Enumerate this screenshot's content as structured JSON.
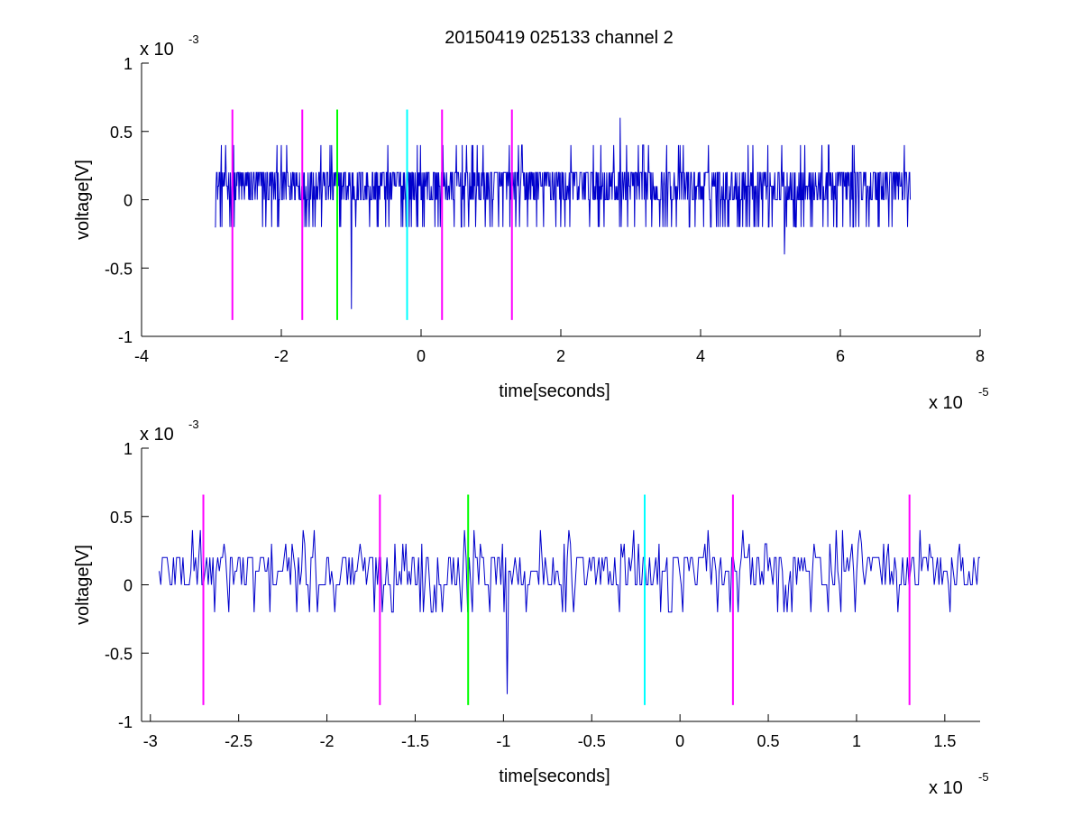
{
  "figure": {
    "title": "20150419 025133 channel 2",
    "background": "#ffffff"
  },
  "chart_data": [
    {
      "type": "line",
      "xlabel": "time[seconds]",
      "ylabel": "voltage[V]",
      "x_multiplier": "x 10",
      "x_multiplier_exp": "-5",
      "y_multiplier": "x 10",
      "y_multiplier_exp": "-3",
      "xlim": [
        -4,
        8
      ],
      "ylim": [
        -1,
        1
      ],
      "xticks": [
        -4,
        -2,
        0,
        2,
        4,
        6,
        8
      ],
      "xtick_labels": [
        "-4",
        "-2",
        "0",
        "2",
        "4",
        "6",
        "8"
      ],
      "yticks": [
        -1,
        -0.5,
        0,
        0.5,
        1
      ],
      "ytick_labels": [
        "-1",
        "-0.5",
        "0",
        "0.5",
        "1"
      ],
      "signal": {
        "color": "#0000cc",
        "x_start": -2.95,
        "x_end": 7.0,
        "levels": [
          -0.2,
          0,
          0.1,
          0.2,
          0.4
        ],
        "baseline": 0.1,
        "notable_points": [
          {
            "x": -1.0,
            "y": -0.8
          },
          {
            "x": 2.85,
            "y": 0.6
          },
          {
            "x": 5.2,
            "y": -0.4
          }
        ]
      },
      "markers": [
        {
          "x": -2.7,
          "color": "#ff00ff"
        },
        {
          "x": -1.7,
          "color": "#ff00ff"
        },
        {
          "x": -1.2,
          "color": "#00ff00"
        },
        {
          "x": -0.2,
          "color": "#00ffff"
        },
        {
          "x": 0.3,
          "color": "#ff00ff"
        },
        {
          "x": 1.3,
          "color": "#ff00ff"
        }
      ],
      "marker_range": [
        -0.88,
        0.66
      ]
    },
    {
      "type": "line",
      "xlabel": "time[seconds]",
      "ylabel": "voltage[V]",
      "x_multiplier": "x 10",
      "x_multiplier_exp": "-5",
      "y_multiplier": "x 10",
      "y_multiplier_exp": "-3",
      "xlim": [
        -3.05,
        1.7
      ],
      "ylim": [
        -1,
        1
      ],
      "xticks": [
        -3,
        -2.5,
        -2,
        -1.5,
        -1,
        -0.5,
        0,
        0.5,
        1,
        1.5
      ],
      "xtick_labels": [
        "-3",
        "-2.5",
        "-2",
        "-1.5",
        "-1",
        "-0.5",
        "0",
        "0.5",
        "1",
        "1.5"
      ],
      "yticks": [
        -1,
        -0.5,
        0,
        0.5,
        1
      ],
      "ytick_labels": [
        "-1",
        "-0.5",
        "0",
        "0.5",
        "1"
      ],
      "signal": {
        "color": "#0000cc",
        "x_start": -2.95,
        "x_end": 1.7,
        "levels": [
          -0.2,
          0,
          0.1,
          0.2,
          0.3,
          0.4
        ],
        "baseline": 0.1,
        "notable_points": [
          {
            "x": -2.72,
            "y": 0.4
          },
          {
            "x": -0.98,
            "y": -0.8
          }
        ]
      },
      "markers": [
        {
          "x": -2.7,
          "color": "#ff00ff"
        },
        {
          "x": -1.7,
          "color": "#ff00ff"
        },
        {
          "x": -1.2,
          "color": "#00ff00"
        },
        {
          "x": -0.2,
          "color": "#00ffff"
        },
        {
          "x": 0.3,
          "color": "#ff00ff"
        },
        {
          "x": 1.3,
          "color": "#ff00ff"
        }
      ],
      "marker_range": [
        -0.88,
        0.66
      ]
    }
  ]
}
